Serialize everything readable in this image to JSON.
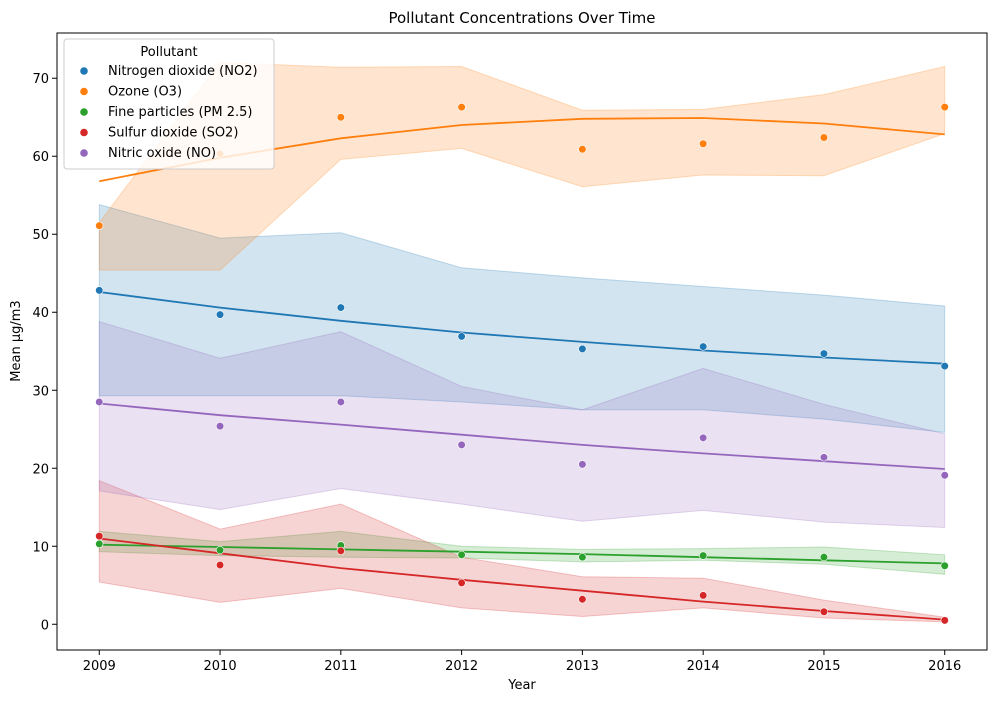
{
  "chart_data": {
    "type": "scatter",
    "title": "Pollutant Concentrations Over Time",
    "xlabel": "Year",
    "ylabel": "Mean µg/m3",
    "x": [
      2009,
      2010,
      2011,
      2012,
      2013,
      2014,
      2015,
      2016
    ],
    "x_ticks": [
      "2009",
      "2010",
      "2011",
      "2012",
      "2013",
      "2014",
      "2015",
      "2016"
    ],
    "y_ticks": [
      "0",
      "10",
      "20",
      "30",
      "40",
      "50",
      "60",
      "70"
    ],
    "xlim": [
      2008.65,
      2016.35
    ],
    "ylim": [
      -3.3,
      75.8
    ],
    "grid": false,
    "legend": {
      "title": "Pollutant",
      "placement": "top-left"
    },
    "series": [
      {
        "name": "Nitrogen dioxide (NO2)",
        "color": "#1f77b4",
        "points": [
          42.8,
          39.7,
          40.6,
          36.9,
          35.3,
          35.6,
          34.7,
          33.1
        ],
        "trend": [
          42.6,
          40.6,
          38.9,
          37.4,
          36.2,
          35.1,
          34.2,
          33.4
        ],
        "band_upper": [
          53.8,
          49.5,
          50.2,
          45.7,
          44.4,
          43.3,
          42.2,
          40.8
        ],
        "band_lower": [
          29.3,
          29.3,
          29.3,
          28.5,
          27.5,
          27.5,
          26.3,
          24.6
        ]
      },
      {
        "name": "Ozone (O3)",
        "color": "#ff7f0e",
        "points": [
          51.1,
          60.3,
          65.0,
          66.3,
          60.9,
          61.6,
          62.4,
          66.3
        ],
        "trend": [
          56.8,
          59.8,
          62.3,
          64.0,
          64.8,
          64.9,
          64.2,
          62.8
        ],
        "band_upper": [
          51.5,
          72.0,
          71.4,
          71.5,
          65.9,
          66.0,
          67.9,
          71.5
        ],
        "band_lower": [
          45.4,
          45.4,
          59.6,
          61.0,
          56.1,
          57.6,
          57.5,
          62.9
        ]
      },
      {
        "name": "Fine particles (PM 2.5)",
        "color": "#2ca02c",
        "points": [
          10.3,
          9.5,
          10.1,
          8.9,
          8.6,
          8.8,
          8.6,
          7.5
        ],
        "trend": [
          10.2,
          9.9,
          9.6,
          9.3,
          9.0,
          8.6,
          8.2,
          7.8
        ],
        "band_upper": [
          11.9,
          10.6,
          11.9,
          10.0,
          9.6,
          9.7,
          9.9,
          8.9
        ],
        "band_lower": [
          9.3,
          8.8,
          8.6,
          8.5,
          8.0,
          8.2,
          7.7,
          6.4
        ]
      },
      {
        "name": "Sulfur dioxide (SO2)",
        "color": "#d62728",
        "points": [
          11.3,
          7.6,
          9.4,
          5.3,
          3.2,
          3.7,
          1.6,
          0.5
        ],
        "trend": [
          11.0,
          9.1,
          7.2,
          5.7,
          4.3,
          2.9,
          1.7,
          0.6
        ],
        "band_upper": [
          18.4,
          12.2,
          15.4,
          8.6,
          6.1,
          5.9,
          3.1,
          0.9
        ],
        "band_lower": [
          5.4,
          2.8,
          4.6,
          2.1,
          1.0,
          2.1,
          0.8,
          0.3
        ]
      },
      {
        "name": "Nitric oxide (NO)",
        "color": "#9467bd",
        "points": [
          28.5,
          25.4,
          28.5,
          23.0,
          20.5,
          23.9,
          21.4,
          19.1
        ],
        "trend": [
          28.3,
          26.8,
          25.6,
          24.3,
          23.0,
          21.9,
          20.9,
          19.9
        ],
        "band_upper": [
          38.8,
          34.1,
          37.5,
          30.5,
          27.5,
          32.8,
          28.2,
          24.4
        ],
        "band_lower": [
          17.1,
          14.7,
          17.4,
          15.4,
          13.2,
          14.6,
          13.1,
          12.4
        ]
      }
    ]
  }
}
